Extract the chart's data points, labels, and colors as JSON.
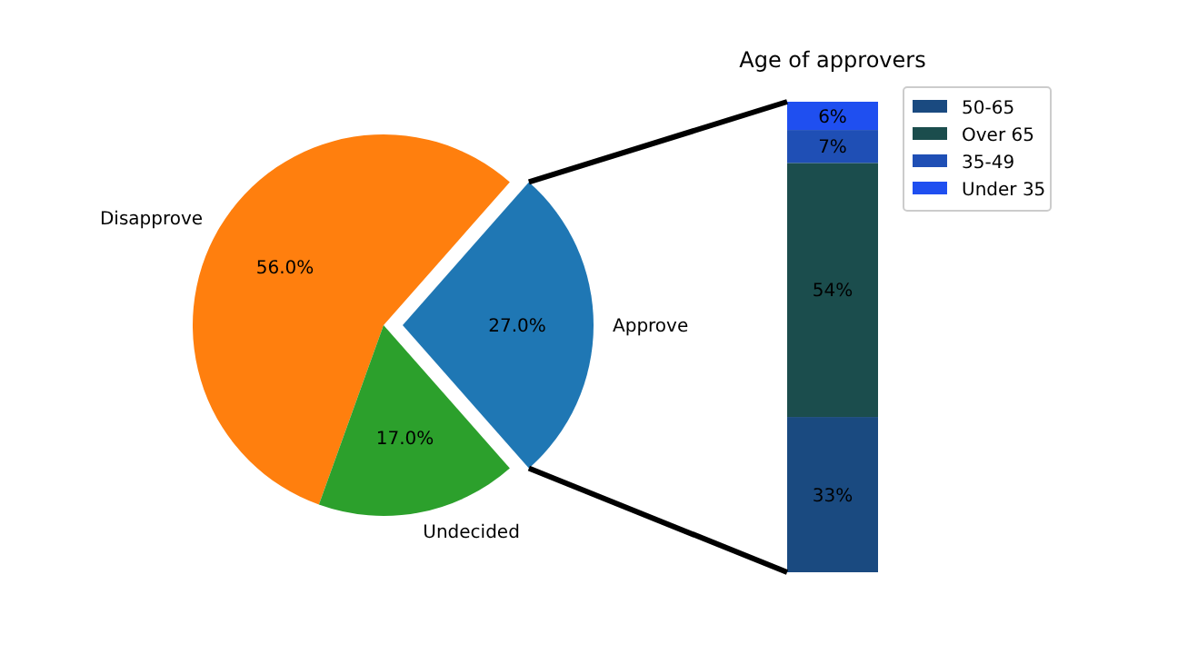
{
  "chart_data": [
    {
      "type": "pie",
      "categories": [
        "Approve",
        "Disapprove",
        "Undecided"
      ],
      "values": [
        27,
        56,
        17
      ],
      "colors": [
        "#1f77b4",
        "#ff7f0e",
        "#2ca02c"
      ],
      "value_labels": [
        "27.0%",
        "56.0%",
        "17.0%"
      ]
    },
    {
      "type": "bar",
      "stacked": true,
      "title": "Age of approvers",
      "categories": [
        null
      ],
      "legend": "top right",
      "series": [
        {
          "name": "50-65",
          "color": "#1a4a80",
          "values": [
            33
          ],
          "value_labels": [
            "33%"
          ]
        },
        {
          "name": "Over 65",
          "color": "#1b4d4d",
          "values": [
            54
          ],
          "value_labels": [
            "54%"
          ]
        },
        {
          "name": "35-49",
          "color": "#1f4fb5",
          "values": [
            7
          ],
          "value_labels": [
            "7%"
          ]
        },
        {
          "name": "Under 35",
          "color": "#1f4ff0",
          "values": [
            6
          ],
          "value_labels": [
            "6%"
          ]
        }
      ]
    }
  ]
}
